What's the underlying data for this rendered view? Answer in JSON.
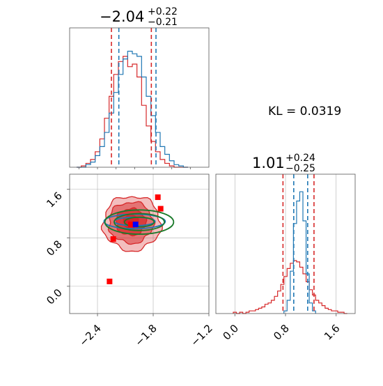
{
  "colors": {
    "red": "#d62728",
    "blue": "#1f77b4",
    "green": "#1a7a2a",
    "marker_red": "#ff0000",
    "marker_blue": "#0000ff",
    "grid": "#b0b0b0",
    "axis": "#555555"
  },
  "panels": {
    "top_left": {
      "title_main": "−2.04",
      "title_sup": "+0.22",
      "title_sub": "−0.21"
    },
    "bottom_right": {
      "title_main": "1.01",
      "title_sup": "+0.24",
      "title_sub": "−0.25"
    },
    "kl_text": "KL = 0.0319"
  },
  "chart_data": [
    {
      "type": "histogram",
      "panel": "top-left marginal (parameter 1)",
      "xlim": [
        -2.7,
        -1.2
      ],
      "series": [
        {
          "color": "red",
          "style": "step",
          "centers": [
            -2.6,
            -2.55,
            -2.5,
            -2.45,
            -2.4,
            -2.35,
            -2.3,
            -2.25,
            -2.2,
            -2.15,
            -2.1,
            -2.05,
            -2.0,
            -1.95,
            -1.9,
            -1.85,
            -1.8,
            -1.75,
            -1.7,
            -1.65,
            -1.6,
            -1.55,
            -1.5,
            -1.45
          ],
          "counts": [
            0.0,
            0.01,
            0.03,
            0.06,
            0.12,
            0.22,
            0.38,
            0.55,
            0.72,
            0.82,
            0.86,
            0.78,
            0.8,
            0.7,
            0.48,
            0.32,
            0.2,
            0.12,
            0.06,
            0.03,
            0.01,
            0.0,
            0.0,
            0.0
          ]
        },
        {
          "color": "blue",
          "style": "step",
          "centers": [
            -2.6,
            -2.55,
            -2.5,
            -2.45,
            -2.4,
            -2.35,
            -2.3,
            -2.25,
            -2.2,
            -2.15,
            -2.1,
            -2.05,
            -2.0,
            -1.95,
            -1.9,
            -1.85,
            -1.8,
            -1.75,
            -1.7,
            -1.65,
            -1.6,
            -1.55,
            -1.5,
            -1.45
          ],
          "counts": [
            0.0,
            0.0,
            0.02,
            0.04,
            0.09,
            0.16,
            0.27,
            0.42,
            0.58,
            0.72,
            0.84,
            0.9,
            0.88,
            0.86,
            0.7,
            0.55,
            0.4,
            0.27,
            0.16,
            0.1,
            0.05,
            0.02,
            0.01,
            0.0
          ]
        }
      ],
      "vlines": [
        {
          "x": -2.25,
          "color": "red",
          "style": "dashed"
        },
        {
          "x": -1.82,
          "color": "red",
          "style": "dashed"
        },
        {
          "x": -2.17,
          "color": "blue",
          "style": "dashed"
        },
        {
          "x": -1.77,
          "color": "blue",
          "style": "dashed"
        }
      ]
    },
    {
      "type": "histogram",
      "panel": "bottom-right marginal (parameter 2)",
      "xlim": [
        -0.3,
        1.9
      ],
      "xticks": [
        0.0,
        0.8,
        1.6
      ],
      "xtick_labels": [
        "0.0",
        "0.8",
        "1.6"
      ],
      "grid": true,
      "series": [
        {
          "color": "red",
          "style": "step",
          "centers": [
            0.0,
            0.05,
            0.1,
            0.15,
            0.2,
            0.25,
            0.3,
            0.35,
            0.4,
            0.45,
            0.5,
            0.55,
            0.6,
            0.65,
            0.7,
            0.75,
            0.8,
            0.85,
            0.9,
            0.95,
            1.0,
            1.05,
            1.1,
            1.15,
            1.2,
            1.25,
            1.3,
            1.35,
            1.4,
            1.45,
            1.5,
            1.55,
            1.6,
            1.65,
            1.7,
            1.75
          ],
          "counts": [
            0.01,
            0.0,
            0.01,
            0.0,
            0.01,
            0.02,
            0.02,
            0.03,
            0.04,
            0.05,
            0.07,
            0.08,
            0.1,
            0.13,
            0.17,
            0.22,
            0.28,
            0.34,
            0.38,
            0.4,
            0.39,
            0.35,
            0.3,
            0.24,
            0.18,
            0.14,
            0.1,
            0.08,
            0.06,
            0.04,
            0.03,
            0.02,
            0.02,
            0.01,
            0.01,
            0.0
          ]
        },
        {
          "color": "blue",
          "style": "step",
          "centers": [
            0.8,
            0.85,
            0.9,
            0.95,
            1.0,
            1.05,
            1.1,
            1.15,
            1.2,
            1.25
          ],
          "counts": [
            0.02,
            0.1,
            0.32,
            0.68,
            0.85,
            0.92,
            0.7,
            0.3,
            0.08,
            0.02
          ]
        }
      ],
      "vlines": [
        {
          "x": 0.76,
          "color": "red",
          "style": "dashed"
        },
        {
          "x": 1.25,
          "color": "red",
          "style": "dashed"
        },
        {
          "x": 0.93,
          "color": "blue",
          "style": "dashed"
        },
        {
          "x": 1.15,
          "color": "blue",
          "style": "dashed"
        }
      ]
    },
    {
      "type": "scatter",
      "panel": "bottom-left joint (parameter 1 vs parameter 2)",
      "xlim": [
        -2.7,
        -1.2
      ],
      "ylim": [
        -0.45,
        1.85
      ],
      "xticks": [
        -2.4,
        -1.8,
        -1.2
      ],
      "xtick_labels": [
        "−2.4",
        "−1.8",
        "−1.2"
      ],
      "yticks": [
        0.0,
        0.8,
        1.6
      ],
      "ytick_labels": [
        "0.0",
        "0.8",
        "1.6"
      ],
      "grid": true,
      "contour_levels": [
        {
          "color": "red",
          "center": [
            -2.03,
            1.04
          ],
          "rx": 0.31,
          "ry": 0.45
        },
        {
          "color": "red",
          "center": [
            -2.04,
            1.05
          ],
          "rx": 0.24,
          "ry": 0.34
        },
        {
          "color": "red",
          "center": [
            -2.04,
            1.06
          ],
          "rx": 0.16,
          "ry": 0.22
        },
        {
          "color": "red",
          "center": [
            -2.04,
            1.07
          ],
          "rx": 0.08,
          "ry": 0.11
        },
        {
          "color": "blue",
          "center": [
            -2.0,
            1.07
          ],
          "rx": 0.33,
          "ry": 0.12
        },
        {
          "color": "blue",
          "center": [
            -2.0,
            1.07
          ],
          "rx": 0.22,
          "ry": 0.07
        },
        {
          "color": "green",
          "center": [
            -1.95,
            1.06
          ],
          "rx": 0.37,
          "ry": 0.2
        },
        {
          "color": "green",
          "center": [
            -1.95,
            1.06
          ],
          "rx": 0.27,
          "ry": 0.14
        },
        {
          "color": "green",
          "center": [
            -1.95,
            1.06
          ],
          "rx": 0.16,
          "ry": 0.08
        }
      ],
      "markers": [
        {
          "x": -2.27,
          "y": 0.08,
          "color": "marker_red"
        },
        {
          "x": -2.23,
          "y": 0.78,
          "color": "marker_red"
        },
        {
          "x": -1.75,
          "y": 1.47,
          "color": "marker_red"
        },
        {
          "x": -1.72,
          "y": 1.28,
          "color": "marker_red"
        },
        {
          "x": -2.04,
          "y": 1.02,
          "color": "marker_red"
        },
        {
          "x": -2.01,
          "y": 1.02,
          "color": "marker_red"
        },
        {
          "x": -1.99,
          "y": 1.02,
          "color": "marker_blue"
        }
      ]
    }
  ]
}
